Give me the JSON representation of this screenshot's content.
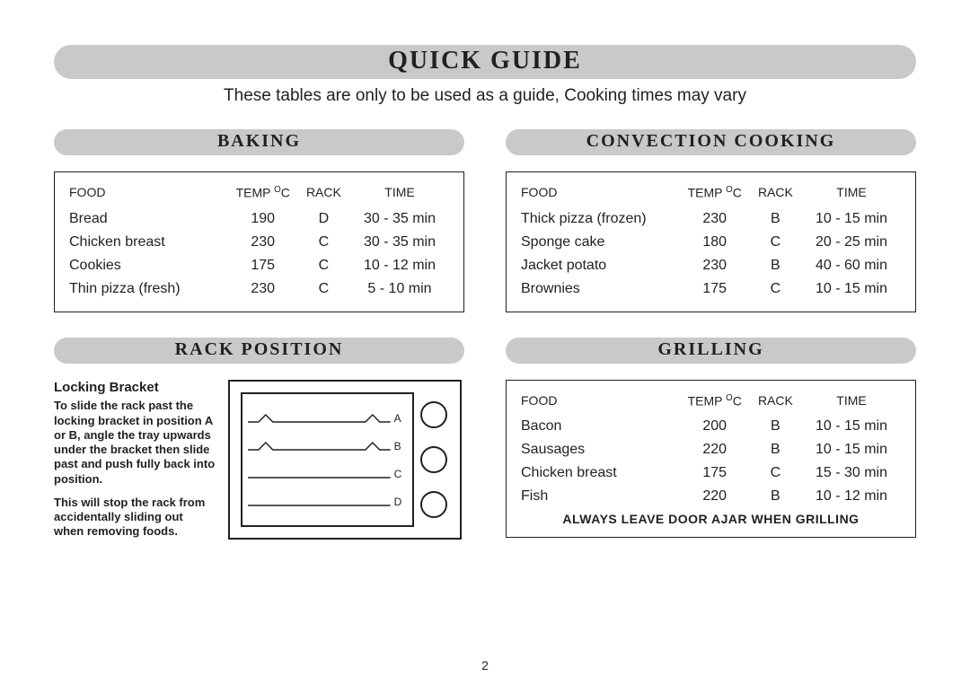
{
  "page": {
    "title": "Quick Guide",
    "subtitle": "These tables are only to be used as a guide, Cooking times may vary",
    "page_number": "2"
  },
  "sections": {
    "baking": {
      "heading": "Baking",
      "columns": [
        "FOOD",
        "TEMP ºC",
        "RACK",
        "TIME"
      ],
      "rows": [
        {
          "food": "Bread",
          "temp": "190",
          "rack": "D",
          "time": "30 - 35 min"
        },
        {
          "food": "Chicken breast",
          "temp": "230",
          "rack": "C",
          "time": "30 - 35 min"
        },
        {
          "food": "Cookies",
          "temp": "175",
          "rack": "C",
          "time": "10 - 12 min"
        },
        {
          "food": "Thin pizza (fresh)",
          "temp": "230",
          "rack": "C",
          "time": "5 - 10 min"
        }
      ]
    },
    "convection": {
      "heading": "Convection Cooking",
      "columns": [
        "FOOD",
        "TEMP ºC",
        "RACK",
        "TIME"
      ],
      "rows": [
        {
          "food": "Thick pizza (frozen)",
          "temp": "230",
          "rack": "B",
          "time": "10 - 15 min"
        },
        {
          "food": "Sponge cake",
          "temp": "180",
          "rack": "C",
          "time": "20 - 25 min"
        },
        {
          "food": "Jacket potato",
          "temp": "230",
          "rack": "B",
          "time": "40 - 60 min"
        },
        {
          "food": "Brownies",
          "temp": "175",
          "rack": "C",
          "time": "10 - 15 min"
        }
      ]
    },
    "grilling": {
      "heading": "Grilling",
      "columns": [
        "FOOD",
        "TEMP ºC",
        "RACK",
        "TIME"
      ],
      "rows": [
        {
          "food": "Bacon",
          "temp": "200",
          "rack": "B",
          "time": "10 - 15 min"
        },
        {
          "food": "Sausages",
          "temp": "220",
          "rack": "B",
          "time": "10 - 15 min"
        },
        {
          "food": "Chicken breast",
          "temp": "175",
          "rack": "C",
          "time": "15 - 30 min"
        },
        {
          "food": "Fish",
          "temp": "220",
          "rack": "B",
          "time": "10 - 12 min"
        }
      ],
      "footer_note": "Always leave door ajar when grilling"
    },
    "rack_position": {
      "heading": "Rack Position",
      "bracket_title": "Locking Bracket",
      "bracket_para1": "To slide the rack past the locking bracket in position A or B, angle the tray upwards under the bracket then slide past and push fully back into position.",
      "bracket_para2": "This will stop the rack from accidentally sliding out when removing foods.",
      "labels": [
        "A",
        "B",
        "C",
        "D"
      ]
    }
  },
  "style": {
    "pill_bg": "#c9c9c9",
    "border_color": "#231f20",
    "text_color": "#231f20",
    "background": "#ffffff"
  }
}
